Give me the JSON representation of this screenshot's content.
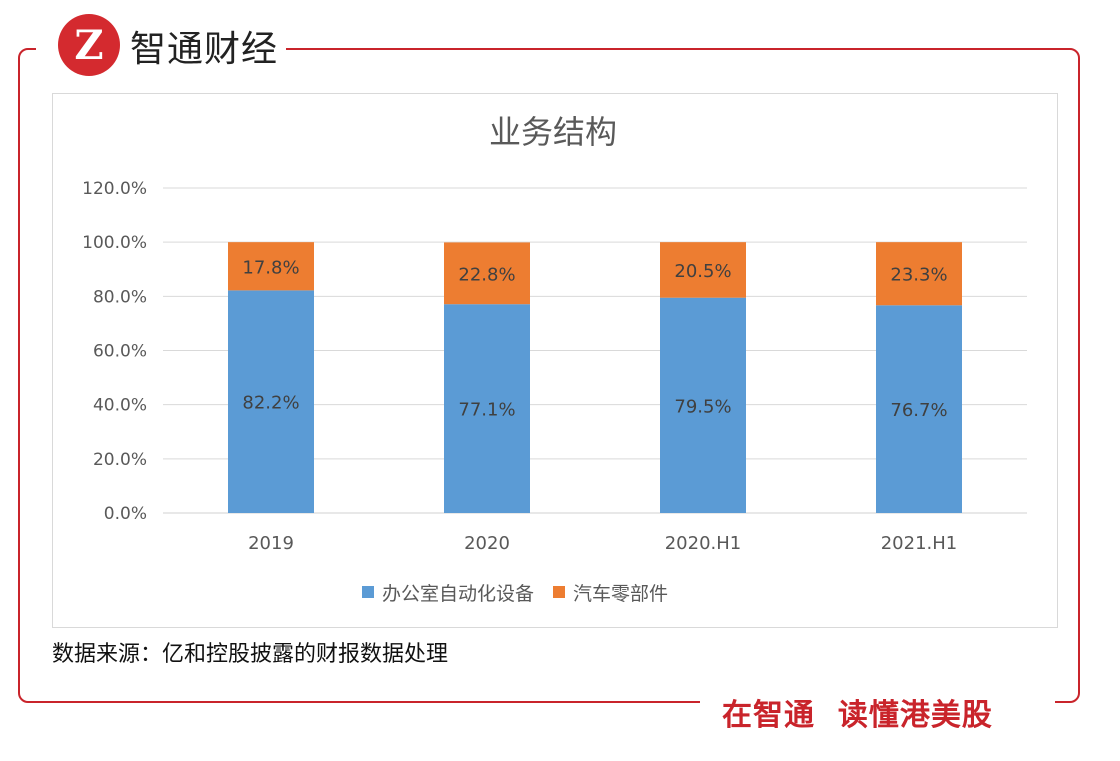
{
  "header": {
    "brand": "智通财经",
    "logo_text": "Z"
  },
  "footer": {
    "slogan": "在智通  读懂港美股"
  },
  "source": "数据来源：亿和控股披露的财报数据处理",
  "colors": {
    "frame": "#c9242b",
    "series1": "#5b9bd5",
    "series2": "#ed7d31"
  },
  "chart_data": {
    "type": "stacked-bar",
    "title": "业务结构",
    "categories": [
      "2019",
      "2020",
      "2020.H1",
      "2021.H1"
    ],
    "series": [
      {
        "name": "办公室自动化设备",
        "values": [
          82.2,
          77.1,
          79.5,
          76.7
        ],
        "labels": [
          "82.2%",
          "77.1%",
          "79.5%",
          "76.7%"
        ],
        "color": "#5b9bd5"
      },
      {
        "name": "汽车零部件",
        "values": [
          17.8,
          22.8,
          20.5,
          23.3
        ],
        "labels": [
          "17.8%",
          "22.8%",
          "20.5%",
          "23.3%"
        ],
        "color": "#ed7d31"
      }
    ],
    "yticks": [
      "0.0%",
      "20.0%",
      "40.0%",
      "60.0%",
      "80.0%",
      "100.0%",
      "120.0%"
    ],
    "ylim": [
      0,
      120
    ],
    "grid": true,
    "legend": "bottom"
  }
}
